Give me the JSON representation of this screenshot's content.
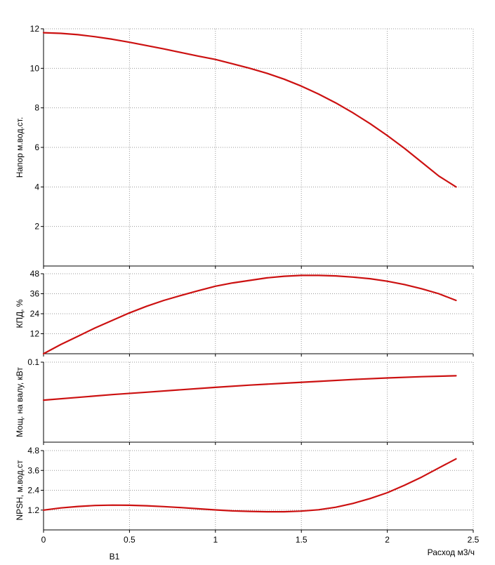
{
  "chart_data": [
    {
      "type": "line",
      "ylabel": "Напор м.вод.ст.",
      "xlim": [
        0,
        2.5
      ],
      "ylim": [
        0,
        12
      ],
      "yticks": [
        "2",
        "4",
        "6",
        "8",
        "10",
        "12"
      ],
      "grid": true,
      "series": [
        {
          "color": "#cc1111",
          "x": [
            0,
            0.1,
            0.2,
            0.3,
            0.4,
            0.5,
            0.6,
            0.7,
            0.8,
            0.9,
            1.0,
            1.1,
            1.2,
            1.3,
            1.4,
            1.5,
            1.6,
            1.7,
            1.8,
            1.9,
            2.0,
            2.1,
            2.2,
            2.3,
            2.4
          ],
          "y": [
            11.8,
            11.77,
            11.7,
            11.6,
            11.47,
            11.32,
            11.15,
            10.98,
            10.8,
            10.62,
            10.45,
            10.23,
            10.0,
            9.75,
            9.45,
            9.1,
            8.7,
            8.25,
            7.75,
            7.2,
            6.6,
            5.95,
            5.25,
            4.55,
            4.0
          ]
        }
      ]
    },
    {
      "type": "line",
      "ylabel": "КПД, %",
      "xlim": [
        0,
        2.5
      ],
      "ylim": [
        0,
        48
      ],
      "yticks": [
        "12",
        "24",
        "36",
        "48"
      ],
      "grid": true,
      "series": [
        {
          "color": "#cc1111",
          "x": [
            0,
            0.1,
            0.2,
            0.3,
            0.4,
            0.5,
            0.6,
            0.7,
            0.8,
            0.9,
            1.0,
            1.1,
            1.2,
            1.3,
            1.4,
            1.5,
            1.6,
            1.7,
            1.8,
            1.9,
            2.0,
            2.1,
            2.2,
            2.3,
            2.4
          ],
          "y": [
            0,
            5.5,
            10.5,
            15.5,
            20.0,
            24.5,
            28.5,
            32.0,
            35.0,
            37.8,
            40.5,
            42.5,
            44.0,
            45.5,
            46.5,
            47.0,
            47.0,
            46.7,
            46.0,
            45.0,
            43.5,
            41.5,
            39.0,
            36.0,
            32.0
          ]
        }
      ]
    },
    {
      "type": "line",
      "ylabel": "Мощ. на валу, кВт",
      "xlim": [
        0,
        2.5
      ],
      "ylim": [
        0,
        0.1
      ],
      "yticks": [
        "0.1"
      ],
      "grid": true,
      "series": [
        {
          "color": "#cc1111",
          "x": [
            0,
            0.2,
            0.4,
            0.6,
            0.8,
            1.0,
            1.2,
            1.4,
            1.6,
            1.8,
            2.0,
            2.2,
            2.4
          ],
          "y": [
            0.0525,
            0.056,
            0.0595,
            0.0625,
            0.0655,
            0.0685,
            0.0713,
            0.0737,
            0.076,
            0.0783,
            0.0803,
            0.0818,
            0.083
          ]
        }
      ]
    },
    {
      "type": "line",
      "ylabel": "NPSH, м.вод.ст",
      "xlabel": "Расход м3/ч",
      "xlim": [
        0,
        2.5
      ],
      "ylim": [
        0,
        4.8
      ],
      "yticks": [
        "1.2",
        "2.4",
        "3.6",
        "4.8"
      ],
      "xticks": [
        "0",
        "0.5",
        "1",
        "1.5",
        "2",
        "2.5"
      ],
      "grid": true,
      "series": [
        {
          "color": "#cc1111",
          "x": [
            0,
            0.1,
            0.2,
            0.3,
            0.4,
            0.5,
            0.6,
            0.7,
            0.8,
            0.9,
            1.0,
            1.1,
            1.2,
            1.3,
            1.4,
            1.5,
            1.6,
            1.7,
            1.8,
            1.9,
            2.0,
            2.1,
            2.2,
            2.3,
            2.4
          ],
          "y": [
            1.2,
            1.33,
            1.42,
            1.48,
            1.5,
            1.49,
            1.46,
            1.41,
            1.35,
            1.28,
            1.21,
            1.15,
            1.12,
            1.1,
            1.1,
            1.14,
            1.22,
            1.37,
            1.6,
            1.9,
            2.25,
            2.7,
            3.2,
            3.75,
            4.3
          ]
        }
      ]
    }
  ],
  "footer_text": "В1"
}
